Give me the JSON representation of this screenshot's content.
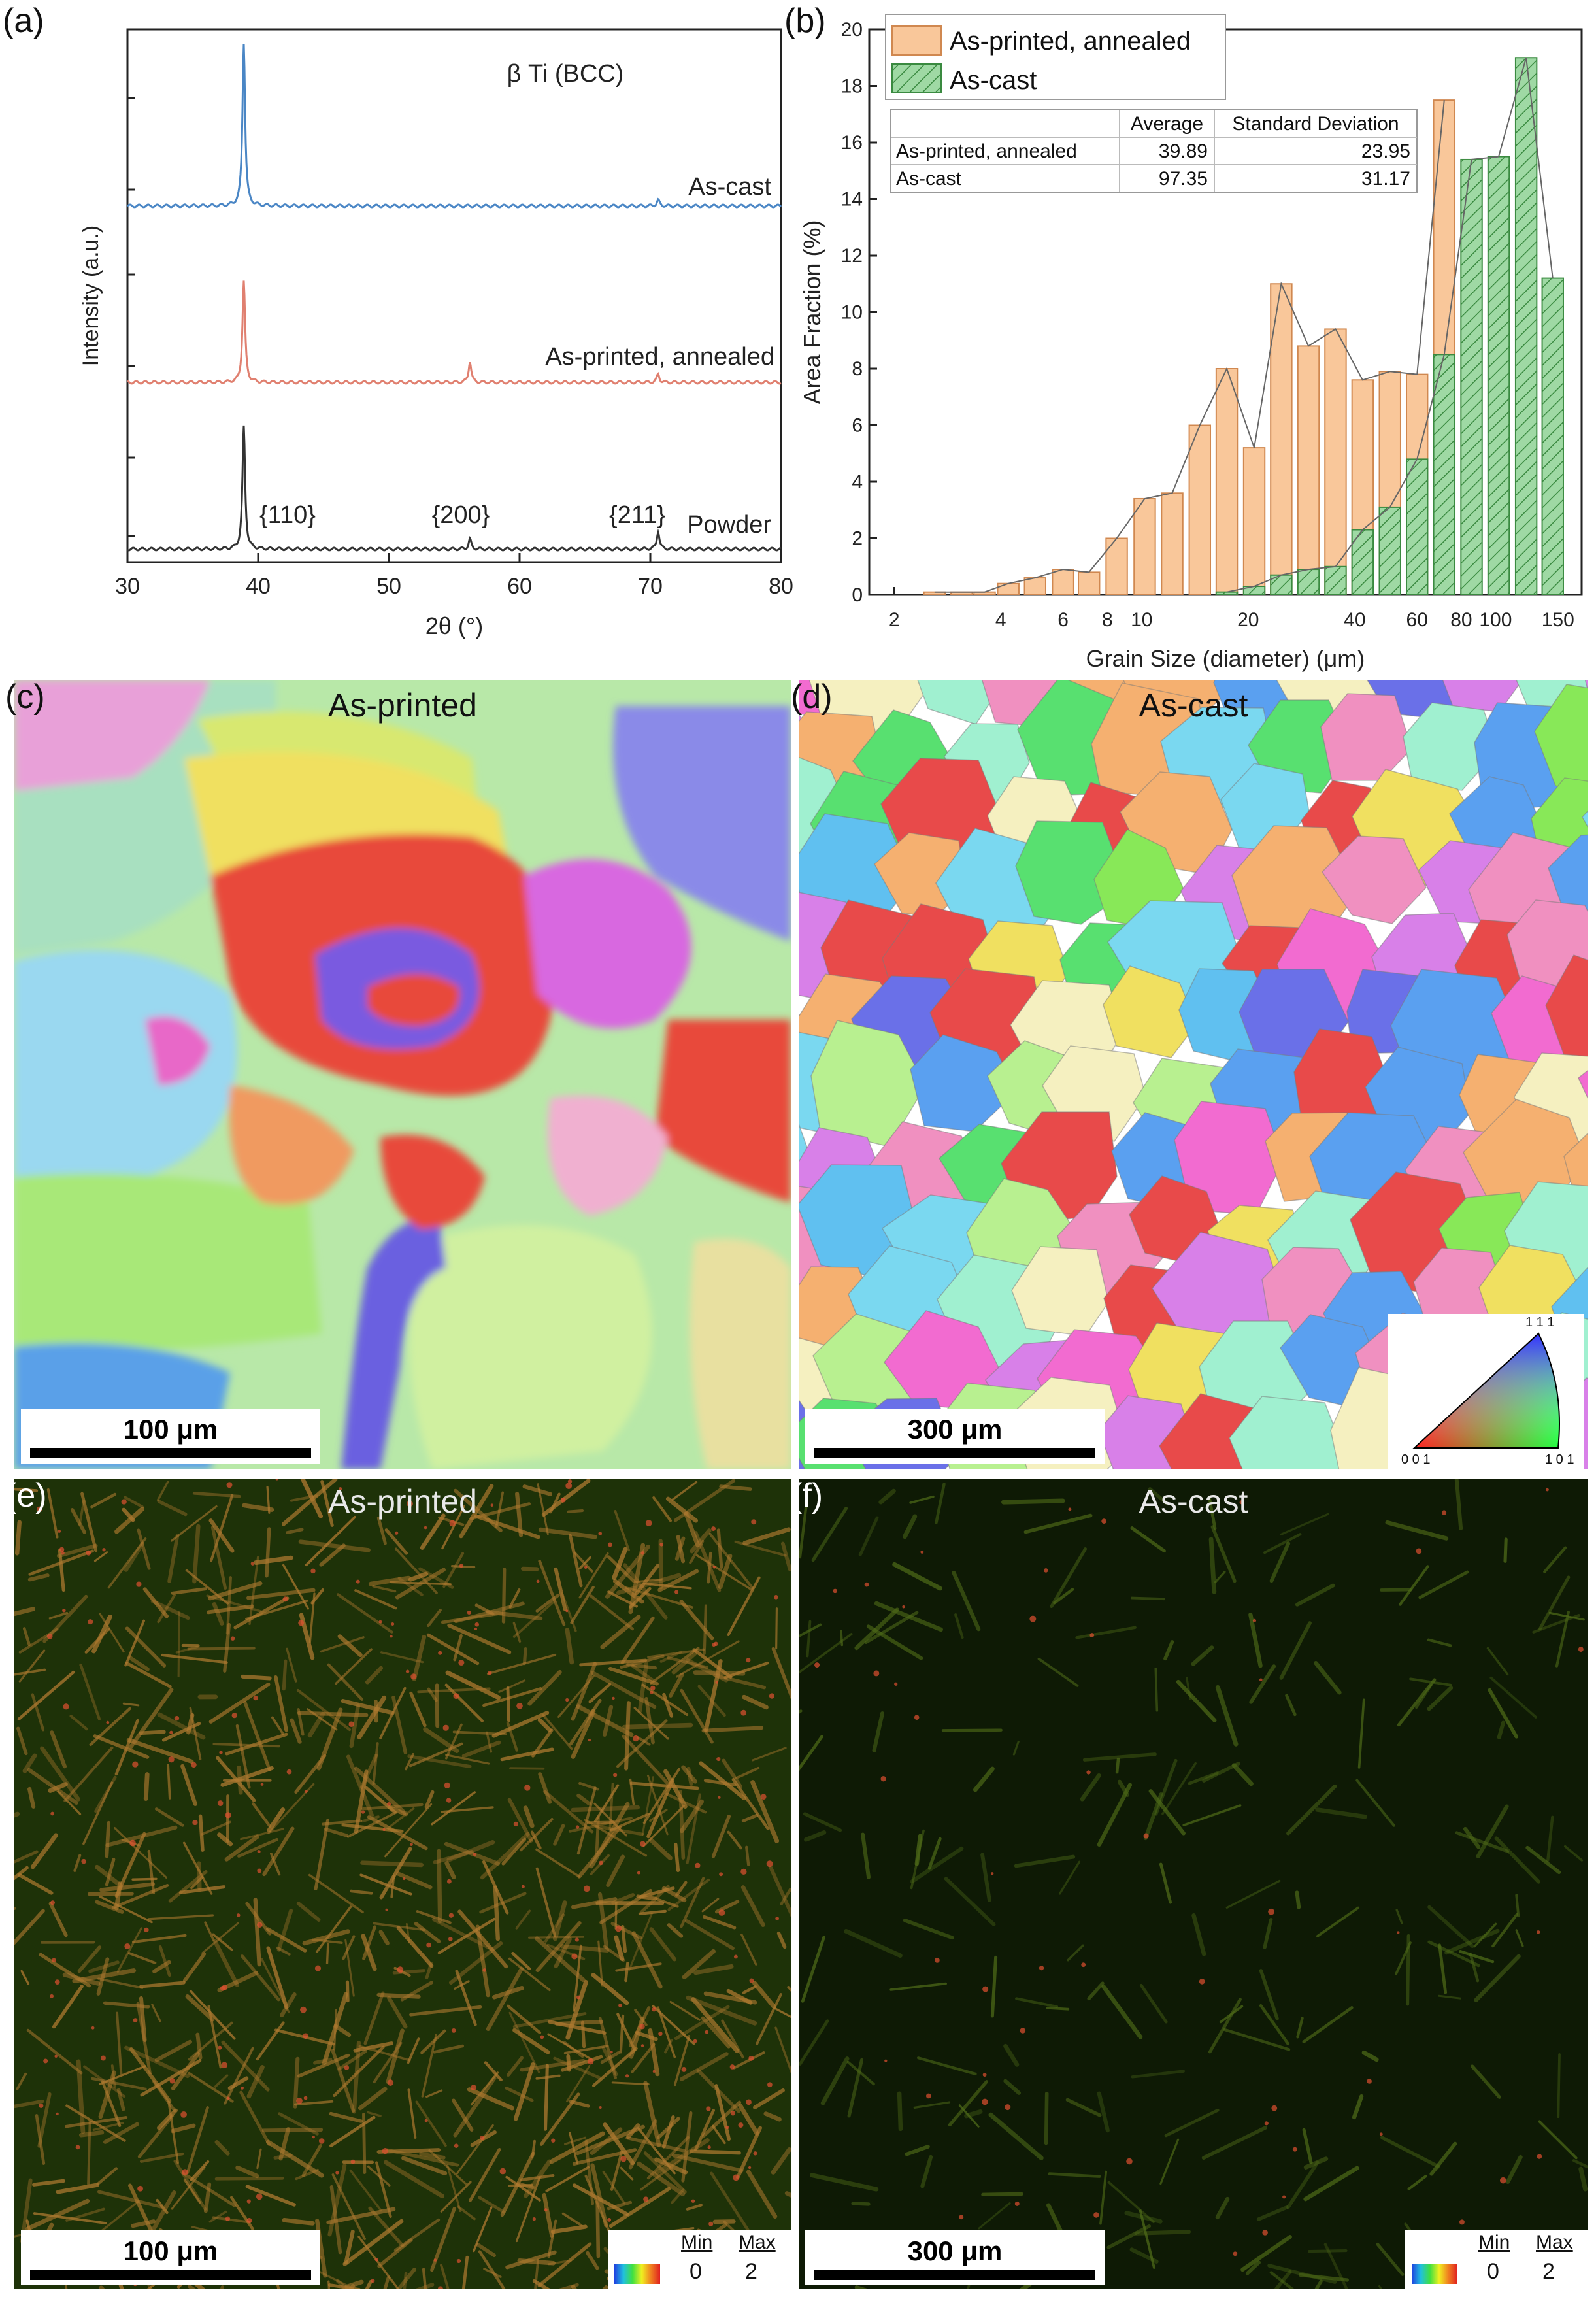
{
  "panels": {
    "a": "(a)",
    "b": "(b)",
    "c": "(c)",
    "d": "(d)",
    "e": "(e)",
    "f": "(f)"
  },
  "chart_data": [
    {
      "type": "line",
      "panel": "a",
      "title": "β Ti (BCC)",
      "xlabel": "2θ (°)",
      "ylabel": "Intensity (a.u.)",
      "xlim": [
        30,
        80
      ],
      "xticks": [
        30,
        40,
        50,
        60,
        70,
        80
      ],
      "series": [
        {
          "name": "As-cast",
          "color": "#4a86c5",
          "peaks": [
            {
              "x": 38.9,
              "h": 1.0
            },
            {
              "x": 70.6,
              "h": 0.035
            }
          ]
        },
        {
          "name": "As-printed, annealed",
          "color": "#e08070",
          "peaks": [
            {
              "x": 38.9,
              "h": 0.62
            },
            {
              "x": 56.2,
              "h": 0.13
            },
            {
              "x": 70.6,
              "h": 0.05
            }
          ]
        },
        {
          "name": "Powder",
          "color": "#333333",
          "peaks": [
            {
              "x": 38.9,
              "h": 0.75
            },
            {
              "x": 56.2,
              "h": 0.06
            },
            {
              "x": 70.6,
              "h": 0.11
            }
          ]
        }
      ],
      "annotations": [
        "{110}",
        "{200}",
        "{211}"
      ]
    },
    {
      "type": "bar",
      "panel": "b",
      "xlabel": "Grain Size (diameter) (μm)",
      "ylabel": "Area Fraction (%)",
      "xscale": "log",
      "xticks": [
        2,
        4,
        6,
        8,
        10,
        20,
        40,
        60,
        80,
        100,
        150
      ],
      "ylim": [
        0,
        20
      ],
      "yticks": [
        0,
        2,
        4,
        6,
        8,
        10,
        12,
        14,
        16,
        18,
        20
      ],
      "series": [
        {
          "name": "As-printed, annealed",
          "color": "#f9c79a",
          "x": [
            2.6,
            3.1,
            3.6,
            4.2,
            5.0,
            6.0,
            7.1,
            8.5,
            10.2,
            12.2,
            14.6,
            17.4,
            20.8,
            24.8,
            29.6,
            35.3,
            42.1,
            50.3,
            60.0,
            71.6
          ],
          "values": [
            0.1,
            0.1,
            0.1,
            0.4,
            0.6,
            0.9,
            0.8,
            2.0,
            3.4,
            3.6,
            6.0,
            8.0,
            5.2,
            11.0,
            8.8,
            9.4,
            7.6,
            7.9,
            7.8,
            17.5
          ]
        },
        {
          "name": "As-cast",
          "color": "#9fd9a4",
          "x": [
            17.4,
            20.8,
            24.8,
            29.6,
            35.3,
            42.1,
            50.3,
            60.0,
            71.6,
            85.5,
            102,
            122,
            145
          ],
          "values": [
            0.1,
            0.3,
            0.7,
            0.9,
            1.0,
            2.3,
            3.1,
            4.8,
            8.5,
            15.4,
            15.5,
            19.0,
            11.2
          ]
        }
      ],
      "table": {
        "headers": [
          "",
          "Average",
          "Standard Deviation"
        ],
        "rows": [
          [
            "As-printed, annealed",
            "39.89",
            "23.95"
          ],
          [
            "As-cast",
            "97.35",
            "31.17"
          ]
        ]
      }
    }
  ],
  "maps": {
    "c": {
      "title": "As-printed",
      "scale": "100 μm"
    },
    "d": {
      "title": "As-cast",
      "scale": "300 μm"
    },
    "e": {
      "title": "As-printed",
      "scale": "100 μm"
    },
    "f": {
      "title": "As-cast",
      "scale": "300 μm"
    }
  },
  "ipf_key": {
    "top": "1 1 1",
    "left": "0 0 1",
    "right": "1 0 1"
  },
  "kam_legend": {
    "min_label": "Min",
    "max_label": "Max",
    "min_value": "0",
    "max_value": "2"
  }
}
